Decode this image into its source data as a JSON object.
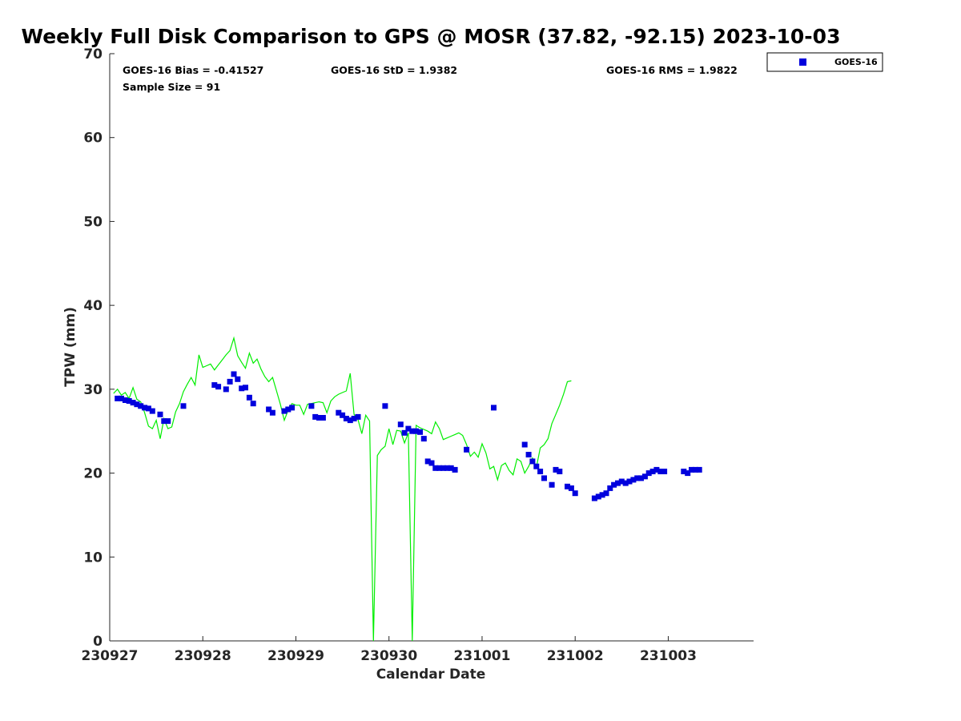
{
  "chart_data": {
    "type": "scatter",
    "title": "Weekly Full Disk Comparison to GPS @ MOSR (37.82, -92.15) 2023-10-03",
    "xlabel": "Calendar Date",
    "ylabel": "TPW (mm)",
    "xlim": [
      "2023-09-27T00:00",
      "2023-10-03T22:00"
    ],
    "ylim": [
      0,
      70
    ],
    "x_ticks": [
      {
        "value": "2023-09-27T00:00",
        "label": "230927"
      },
      {
        "value": "2023-09-28T00:00",
        "label": "230928"
      },
      {
        "value": "2023-09-29T00:00",
        "label": "230929"
      },
      {
        "value": "2023-09-30T00:00",
        "label": "230930"
      },
      {
        "value": "2023-10-01T00:00",
        "label": "231001"
      },
      {
        "value": "2023-10-02T00:00",
        "label": "231002"
      },
      {
        "value": "2023-10-03T00:00",
        "label": "231003"
      }
    ],
    "y_ticks": [
      {
        "value": 0,
        "label": "0"
      },
      {
        "value": 10,
        "label": "10"
      },
      {
        "value": 20,
        "label": "20"
      },
      {
        "value": 30,
        "label": "30"
      },
      {
        "value": 40,
        "label": "40"
      },
      {
        "value": 50,
        "label": "50"
      },
      {
        "value": 60,
        "label": "60"
      },
      {
        "value": 70,
        "label": "70"
      }
    ],
    "grid": false,
    "legend": {
      "position": "top-right",
      "entries": [
        "GOES-16"
      ]
    },
    "stats": {
      "bias": "GOES-16 Bias = -0.41527",
      "std": "GOES-16 StD = 1.9382",
      "rms": "GOES-16 RMS = 1.9822",
      "sample": "Sample Size = 91"
    },
    "series": [
      {
        "name": "GOES-16",
        "kind": "markers",
        "color": "#0000dd",
        "points": [
          [
            "2023-09-27T02:00",
            28.9
          ],
          [
            "2023-09-27T03:00",
            28.9
          ],
          [
            "2023-09-27T04:00",
            28.7
          ],
          [
            "2023-09-27T05:00",
            28.6
          ],
          [
            "2023-09-27T06:00",
            28.4
          ],
          [
            "2023-09-27T07:00",
            28.2
          ],
          [
            "2023-09-27T08:00",
            28.0
          ],
          [
            "2023-09-27T09:00",
            27.8
          ],
          [
            "2023-09-27T10:00",
            27.7
          ],
          [
            "2023-09-27T11:00",
            27.4
          ],
          [
            "2023-09-27T13:00",
            27.0
          ],
          [
            "2023-09-27T14:00",
            26.2
          ],
          [
            "2023-09-27T15:00",
            26.2
          ],
          [
            "2023-09-27T19:00",
            28.0
          ],
          [
            "2023-09-28T03:00",
            30.5
          ],
          [
            "2023-09-28T04:00",
            30.3
          ],
          [
            "2023-09-28T06:00",
            30.0
          ],
          [
            "2023-09-28T07:00",
            30.9
          ],
          [
            "2023-09-28T08:00",
            31.8
          ],
          [
            "2023-09-28T09:00",
            31.2
          ],
          [
            "2023-09-28T10:00",
            30.1
          ],
          [
            "2023-09-28T11:00",
            30.2
          ],
          [
            "2023-09-28T12:00",
            29.0
          ],
          [
            "2023-09-28T13:00",
            28.3
          ],
          [
            "2023-09-28T17:00",
            27.6
          ],
          [
            "2023-09-28T18:00",
            27.2
          ],
          [
            "2023-09-28T21:00",
            27.4
          ],
          [
            "2023-09-28T22:00",
            27.6
          ],
          [
            "2023-09-28T23:00",
            27.8
          ],
          [
            "2023-09-29T04:00",
            28.0
          ],
          [
            "2023-09-29T05:00",
            26.7
          ],
          [
            "2023-09-29T06:00",
            26.6
          ],
          [
            "2023-09-29T07:00",
            26.6
          ],
          [
            "2023-09-29T11:00",
            27.2
          ],
          [
            "2023-09-29T12:00",
            26.9
          ],
          [
            "2023-09-29T13:00",
            26.5
          ],
          [
            "2023-09-29T14:00",
            26.3
          ],
          [
            "2023-09-29T15:00",
            26.5
          ],
          [
            "2023-09-29T16:00",
            26.7
          ],
          [
            "2023-09-29T23:00",
            28.0
          ],
          [
            "2023-09-30T03:00",
            25.8
          ],
          [
            "2023-09-30T04:00",
            24.8
          ],
          [
            "2023-09-30T05:00",
            25.3
          ],
          [
            "2023-09-30T06:00",
            25.0
          ],
          [
            "2023-09-30T07:00",
            25.0
          ],
          [
            "2023-09-30T08:00",
            24.9
          ],
          [
            "2023-09-30T09:00",
            24.1
          ],
          [
            "2023-09-30T10:00",
            21.4
          ],
          [
            "2023-09-30T11:00",
            21.2
          ],
          [
            "2023-09-30T12:00",
            20.6
          ],
          [
            "2023-09-30T13:00",
            20.6
          ],
          [
            "2023-09-30T14:00",
            20.6
          ],
          [
            "2023-09-30T15:00",
            20.6
          ],
          [
            "2023-09-30T16:00",
            20.6
          ],
          [
            "2023-09-30T17:00",
            20.4
          ],
          [
            "2023-09-30T20:00",
            22.8
          ],
          [
            "2023-10-01T03:00",
            27.8
          ],
          [
            "2023-10-01T11:00",
            23.4
          ],
          [
            "2023-10-01T12:00",
            22.2
          ],
          [
            "2023-10-01T13:00",
            21.4
          ],
          [
            "2023-10-01T14:00",
            20.8
          ],
          [
            "2023-10-01T15:00",
            20.2
          ],
          [
            "2023-10-01T16:00",
            19.4
          ],
          [
            "2023-10-01T18:00",
            18.6
          ],
          [
            "2023-10-01T19:00",
            20.4
          ],
          [
            "2023-10-01T20:00",
            20.2
          ],
          [
            "2023-10-01T22:00",
            18.4
          ],
          [
            "2023-10-01T23:00",
            18.2
          ],
          [
            "2023-10-02T00:00",
            17.6
          ],
          [
            "2023-10-02T05:00",
            17.0
          ],
          [
            "2023-10-02T06:00",
            17.2
          ],
          [
            "2023-10-02T07:00",
            17.4
          ],
          [
            "2023-10-02T08:00",
            17.6
          ],
          [
            "2023-10-02T09:00",
            18.2
          ],
          [
            "2023-10-02T10:00",
            18.6
          ],
          [
            "2023-10-02T11:00",
            18.8
          ],
          [
            "2023-10-02T12:00",
            19.0
          ],
          [
            "2023-10-02T13:00",
            18.8
          ],
          [
            "2023-10-02T14:00",
            19.0
          ],
          [
            "2023-10-02T15:00",
            19.2
          ],
          [
            "2023-10-02T16:00",
            19.4
          ],
          [
            "2023-10-02T17:00",
            19.4
          ],
          [
            "2023-10-02T18:00",
            19.6
          ],
          [
            "2023-10-02T19:00",
            20.0
          ],
          [
            "2023-10-02T20:00",
            20.2
          ],
          [
            "2023-10-02T21:00",
            20.4
          ],
          [
            "2023-10-02T22:00",
            20.2
          ],
          [
            "2023-10-02T23:00",
            20.2
          ],
          [
            "2023-10-03T04:00",
            20.2
          ],
          [
            "2023-10-03T05:00",
            20.0
          ],
          [
            "2023-10-03T06:00",
            20.4
          ],
          [
            "2023-10-03T07:00",
            20.4
          ],
          [
            "2023-10-03T08:00",
            20.4
          ]
        ]
      },
      {
        "kind": "line",
        "color": "#00ee00",
        "points": [
          [
            "2023-09-27T01:00",
            29.5
          ],
          [
            "2023-09-27T02:00",
            30.0
          ],
          [
            "2023-09-27T03:00",
            29.3
          ],
          [
            "2023-09-27T04:00",
            29.6
          ],
          [
            "2023-09-27T05:00",
            28.9
          ],
          [
            "2023-09-27T06:00",
            30.2
          ],
          [
            "2023-09-27T07:00",
            28.8
          ],
          [
            "2023-09-27T08:00",
            28.5
          ],
          [
            "2023-09-27T09:00",
            27.2
          ],
          [
            "2023-09-27T10:00",
            25.6
          ],
          [
            "2023-09-27T11:00",
            25.3
          ],
          [
            "2023-09-27T12:00",
            26.3
          ],
          [
            "2023-09-27T13:00",
            24.1
          ],
          [
            "2023-09-27T14:00",
            26.5
          ],
          [
            "2023-09-27T15:00",
            25.3
          ],
          [
            "2023-09-27T16:00",
            25.5
          ],
          [
            "2023-09-27T17:00",
            27.3
          ],
          [
            "2023-09-27T18:00",
            28.3
          ],
          [
            "2023-09-27T19:00",
            29.7
          ],
          [
            "2023-09-27T20:00",
            30.6
          ],
          [
            "2023-09-27T21:00",
            31.4
          ],
          [
            "2023-09-27T22:00",
            30.5
          ],
          [
            "2023-09-27T23:00",
            34.1
          ],
          [
            "2023-09-28T00:00",
            32.6
          ],
          [
            "2023-09-28T01:00",
            32.8
          ],
          [
            "2023-09-28T02:00",
            33.0
          ],
          [
            "2023-09-28T03:00",
            32.3
          ],
          [
            "2023-09-28T04:00",
            32.9
          ],
          [
            "2023-09-28T05:00",
            33.5
          ],
          [
            "2023-09-28T06:00",
            34.1
          ],
          [
            "2023-09-28T07:00",
            34.6
          ],
          [
            "2023-09-28T08:00",
            36.1
          ],
          [
            "2023-09-28T09:00",
            34.0
          ],
          [
            "2023-09-28T10:00",
            33.2
          ],
          [
            "2023-09-28T11:00",
            32.5
          ],
          [
            "2023-09-28T12:00",
            34.3
          ],
          [
            "2023-09-28T13:00",
            33.1
          ],
          [
            "2023-09-28T14:00",
            33.6
          ],
          [
            "2023-09-28T15:00",
            32.4
          ],
          [
            "2023-09-28T16:00",
            31.5
          ],
          [
            "2023-09-28T17:00",
            30.9
          ],
          [
            "2023-09-28T18:00",
            31.4
          ],
          [
            "2023-09-28T19:00",
            29.8
          ],
          [
            "2023-09-28T20:00",
            28.2
          ],
          [
            "2023-09-28T21:00",
            26.3
          ],
          [
            "2023-09-28T22:00",
            27.5
          ],
          [
            "2023-09-28T23:00",
            28.3
          ],
          [
            "2023-09-29T00:00",
            28.1
          ],
          [
            "2023-09-29T01:00",
            28.1
          ],
          [
            "2023-09-29T02:00",
            27.0
          ],
          [
            "2023-09-29T03:00",
            28.2
          ],
          [
            "2023-09-29T04:00",
            28.3
          ],
          [
            "2023-09-29T05:00",
            28.4
          ],
          [
            "2023-09-29T06:00",
            28.5
          ],
          [
            "2023-09-29T07:00",
            28.4
          ],
          [
            "2023-09-29T08:00",
            27.2
          ],
          [
            "2023-09-29T09:00",
            28.6
          ],
          [
            "2023-09-29T10:00",
            29.1
          ],
          [
            "2023-09-29T11:00",
            29.4
          ],
          [
            "2023-09-29T12:00",
            29.6
          ],
          [
            "2023-09-29T13:00",
            29.8
          ],
          [
            "2023-09-29T14:00",
            31.9
          ],
          [
            "2023-09-29T15:00",
            27.0
          ],
          [
            "2023-09-29T16:00",
            26.4
          ],
          [
            "2023-09-29T17:00",
            24.7
          ],
          [
            "2023-09-29T18:00",
            26.9
          ],
          [
            "2023-09-29T19:00",
            26.2
          ],
          [
            "2023-09-29T20:00",
            0
          ],
          [
            "2023-09-29T21:00",
            22.1
          ],
          [
            "2023-09-29T22:00",
            22.8
          ],
          [
            "2023-09-29T23:00",
            23.2
          ],
          [
            "2023-09-30T00:00",
            25.3
          ],
          [
            "2023-09-30T01:00",
            23.4
          ],
          [
            "2023-09-30T02:00",
            25.1
          ],
          [
            "2023-09-30T03:00",
            25.0
          ],
          [
            "2023-09-30T04:00",
            23.6
          ],
          [
            "2023-09-30T05:00",
            24.8
          ],
          [
            "2023-09-30T06:00",
            0
          ],
          [
            "2023-09-30T07:00",
            25.7
          ],
          [
            "2023-09-30T08:00",
            25.4
          ],
          [
            "2023-09-30T09:00",
            25.2
          ],
          [
            "2023-09-30T10:00",
            25.0
          ],
          [
            "2023-09-30T11:00",
            24.7
          ],
          [
            "2023-09-30T12:00",
            26.1
          ],
          [
            "2023-09-30T13:00",
            25.3
          ],
          [
            "2023-09-30T14:00",
            24.0
          ],
          [
            "2023-09-30T15:00",
            24.2
          ],
          [
            "2023-09-30T16:00",
            24.4
          ],
          [
            "2023-09-30T17:00",
            24.6
          ],
          [
            "2023-09-30T18:00",
            24.8
          ],
          [
            "2023-09-30T19:00",
            24.5
          ],
          [
            "2023-09-30T20:00",
            23.4
          ],
          [
            "2023-09-30T21:00",
            22.0
          ],
          [
            "2023-09-30T22:00",
            22.5
          ],
          [
            "2023-09-30T23:00",
            21.9
          ],
          [
            "2023-10-01T00:00",
            23.5
          ],
          [
            "2023-10-01T01:00",
            22.4
          ],
          [
            "2023-10-01T02:00",
            20.5
          ],
          [
            "2023-10-01T03:00",
            20.8
          ],
          [
            "2023-10-01T04:00",
            19.2
          ],
          [
            "2023-10-01T05:00",
            20.9
          ],
          [
            "2023-10-01T06:00",
            21.2
          ],
          [
            "2023-10-01T07:00",
            20.3
          ],
          [
            "2023-10-01T08:00",
            19.8
          ],
          [
            "2023-10-01T09:00",
            21.7
          ],
          [
            "2023-10-01T10:00",
            21.4
          ],
          [
            "2023-10-01T11:00",
            20.0
          ],
          [
            "2023-10-01T12:00",
            20.8
          ],
          [
            "2023-10-01T13:00",
            21.8
          ],
          [
            "2023-10-01T14:00",
            20.7
          ],
          [
            "2023-10-01T15:00",
            23.0
          ],
          [
            "2023-10-01T16:00",
            23.4
          ],
          [
            "2023-10-01T17:00",
            24.1
          ],
          [
            "2023-10-01T18:00",
            25.9
          ],
          [
            "2023-10-01T19:00",
            27.0
          ],
          [
            "2023-10-01T20:00",
            28.1
          ],
          [
            "2023-10-01T21:00",
            29.4
          ],
          [
            "2023-10-01T22:00",
            30.9
          ],
          [
            "2023-10-01T23:00",
            31.0
          ]
        ]
      }
    ]
  },
  "legend_label": "GOES-16"
}
